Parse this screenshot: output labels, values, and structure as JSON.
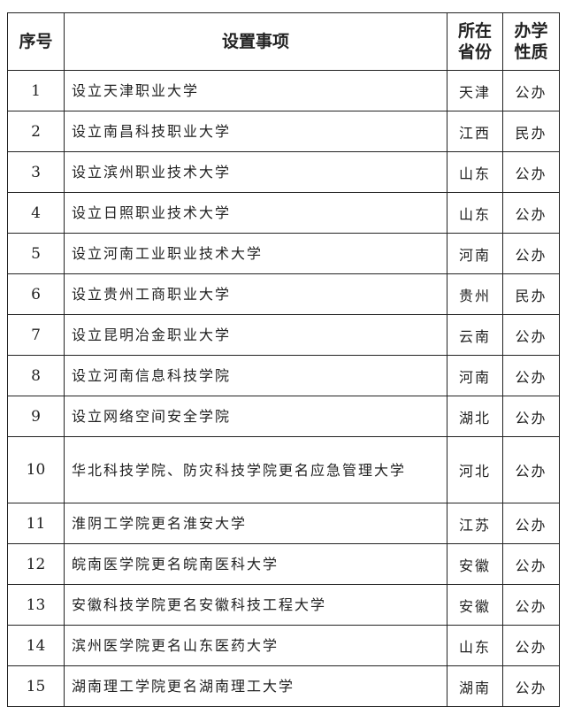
{
  "headers": [
    "序号",
    "设置事项",
    "所在省份",
    "办学性质"
  ],
  "header_lines": {
    "province": [
      "所在",
      "省份"
    ],
    "type": [
      "办学",
      "性质"
    ]
  },
  "rows": [
    {
      "no": "1",
      "item": "设立天津职业大学",
      "province": "天津",
      "type": "公办"
    },
    {
      "no": "2",
      "item": "设立南昌科技职业大学",
      "province": "江西",
      "type": "民办"
    },
    {
      "no": "3",
      "item": "设立滨州职业技术大学",
      "province": "山东",
      "type": "公办"
    },
    {
      "no": "4",
      "item": "设立日照职业技术大学",
      "province": "山东",
      "type": "公办"
    },
    {
      "no": "5",
      "item": "设立河南工业职业技术大学",
      "province": "河南",
      "type": "公办"
    },
    {
      "no": "6",
      "item": "设立贵州工商职业大学",
      "province": "贵州",
      "type": "民办"
    },
    {
      "no": "7",
      "item": "设立昆明冶金职业大学",
      "province": "云南",
      "type": "公办"
    },
    {
      "no": "8",
      "item": "设立河南信息科技学院",
      "province": "河南",
      "type": "公办"
    },
    {
      "no": "9",
      "item": "设立网络空间安全学院",
      "province": "湖北",
      "type": "公办"
    },
    {
      "no": "10",
      "item": "华北科技学院、防灾科技学院更名应急管理大学",
      "province": "河北",
      "type": "公办"
    },
    {
      "no": "11",
      "item": "淮阴工学院更名淮安大学",
      "province": "江苏",
      "type": "公办"
    },
    {
      "no": "12",
      "item": "皖南医学院更名皖南医科大学",
      "province": "安徽",
      "type": "公办"
    },
    {
      "no": "13",
      "item": "安徽科技学院更名安徽科技工程大学",
      "province": "安徽",
      "type": "公办"
    },
    {
      "no": "14",
      "item": "滨州医学院更名山东医药大学",
      "province": "山东",
      "type": "公办"
    },
    {
      "no": "15",
      "item": "湖南理工学院更名湖南理工大学",
      "province": "湖南",
      "type": "公办"
    }
  ]
}
